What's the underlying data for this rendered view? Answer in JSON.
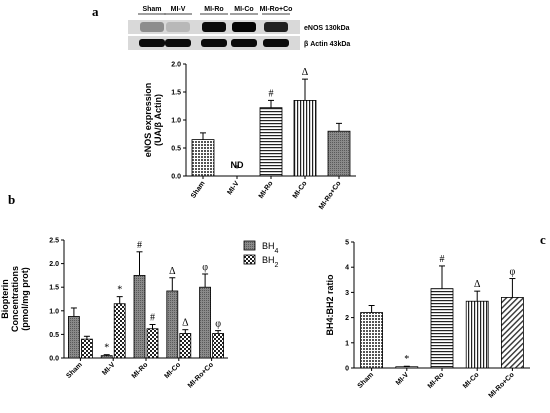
{
  "panels": {
    "a": "a",
    "b": "b",
    "c": "c"
  },
  "blot": {
    "lanes": [
      "Sham",
      "MI-V",
      "MI-Ro",
      "MI-Co",
      "MI-Ro+Co"
    ],
    "label_enos": "eNOS  130kDa",
    "label_actin": "β Actin 43kDa"
  },
  "chart_data": [
    {
      "type": "bar",
      "panel": "a",
      "ylabel": "eNOS expression\n(UA/β Actin)",
      "categories": [
        "Sham",
        "MI-V",
        "MI-Ro",
        "MI-Co",
        "MI-Ro+Co"
      ],
      "values": [
        0.65,
        0,
        1.22,
        1.35,
        0.8
      ],
      "errors": [
        0.12,
        0,
        0.13,
        0.38,
        0.14
      ],
      "annotations": [
        "",
        "*",
        "#",
        "Δ",
        ""
      ],
      "missing_label": {
        "category": "MI-V",
        "text": "ND"
      },
      "ylim": [
        0.0,
        2.0
      ],
      "yticks": [
        "0.0",
        "0.5",
        "1.0",
        "1.5",
        "2.0"
      ]
    },
    {
      "type": "bar",
      "panel": "b",
      "ylabel": "Biopterin\nConcentrations\n(pmol/mg prot)",
      "categories": [
        "Sham",
        "MI-V",
        "MI-Ro",
        "MI-Co",
        "MI-Ro+Co"
      ],
      "series": [
        {
          "name": "BH4",
          "values": [
            0.88,
            0.05,
            1.75,
            1.42,
            1.5
          ],
          "errors": [
            0.18,
            0.02,
            0.5,
            0.28,
            0.28
          ],
          "annotations": [
            "",
            "*",
            "#",
            "Δ",
            "φ"
          ]
        },
        {
          "name": "BH2",
          "values": [
            0.4,
            1.15,
            0.62,
            0.52,
            0.52
          ],
          "errors": [
            0.06,
            0.15,
            0.09,
            0.08,
            0.06
          ],
          "annotations": [
            "",
            "*",
            "#",
            "Δ",
            "φ"
          ]
        }
      ],
      "ylim": [
        0.0,
        2.5
      ],
      "yticks": [
        "0.0",
        "0.5",
        "1.0",
        "1.5",
        "2.0",
        "2.5"
      ],
      "legend": [
        {
          "base": "BH",
          "sub": "4"
        },
        {
          "base": "BH",
          "sub": "2"
        }
      ]
    },
    {
      "type": "bar",
      "panel": "c",
      "ylabel": "BH4:BH2 ratio",
      "categories": [
        "Sham",
        "MI-V",
        "MI-Ro",
        "MI-Co",
        "MI-Ro+Co"
      ],
      "values": [
        2.2,
        0.05,
        3.15,
        2.65,
        2.8
      ],
      "errors": [
        0.28,
        0.02,
        0.9,
        0.4,
        0.75
      ],
      "annotations": [
        "",
        "*",
        "#",
        "Δ",
        "φ"
      ],
      "ylim": [
        0,
        5
      ],
      "yticks": [
        "0",
        "1",
        "2",
        "3",
        "4",
        "5"
      ]
    }
  ]
}
